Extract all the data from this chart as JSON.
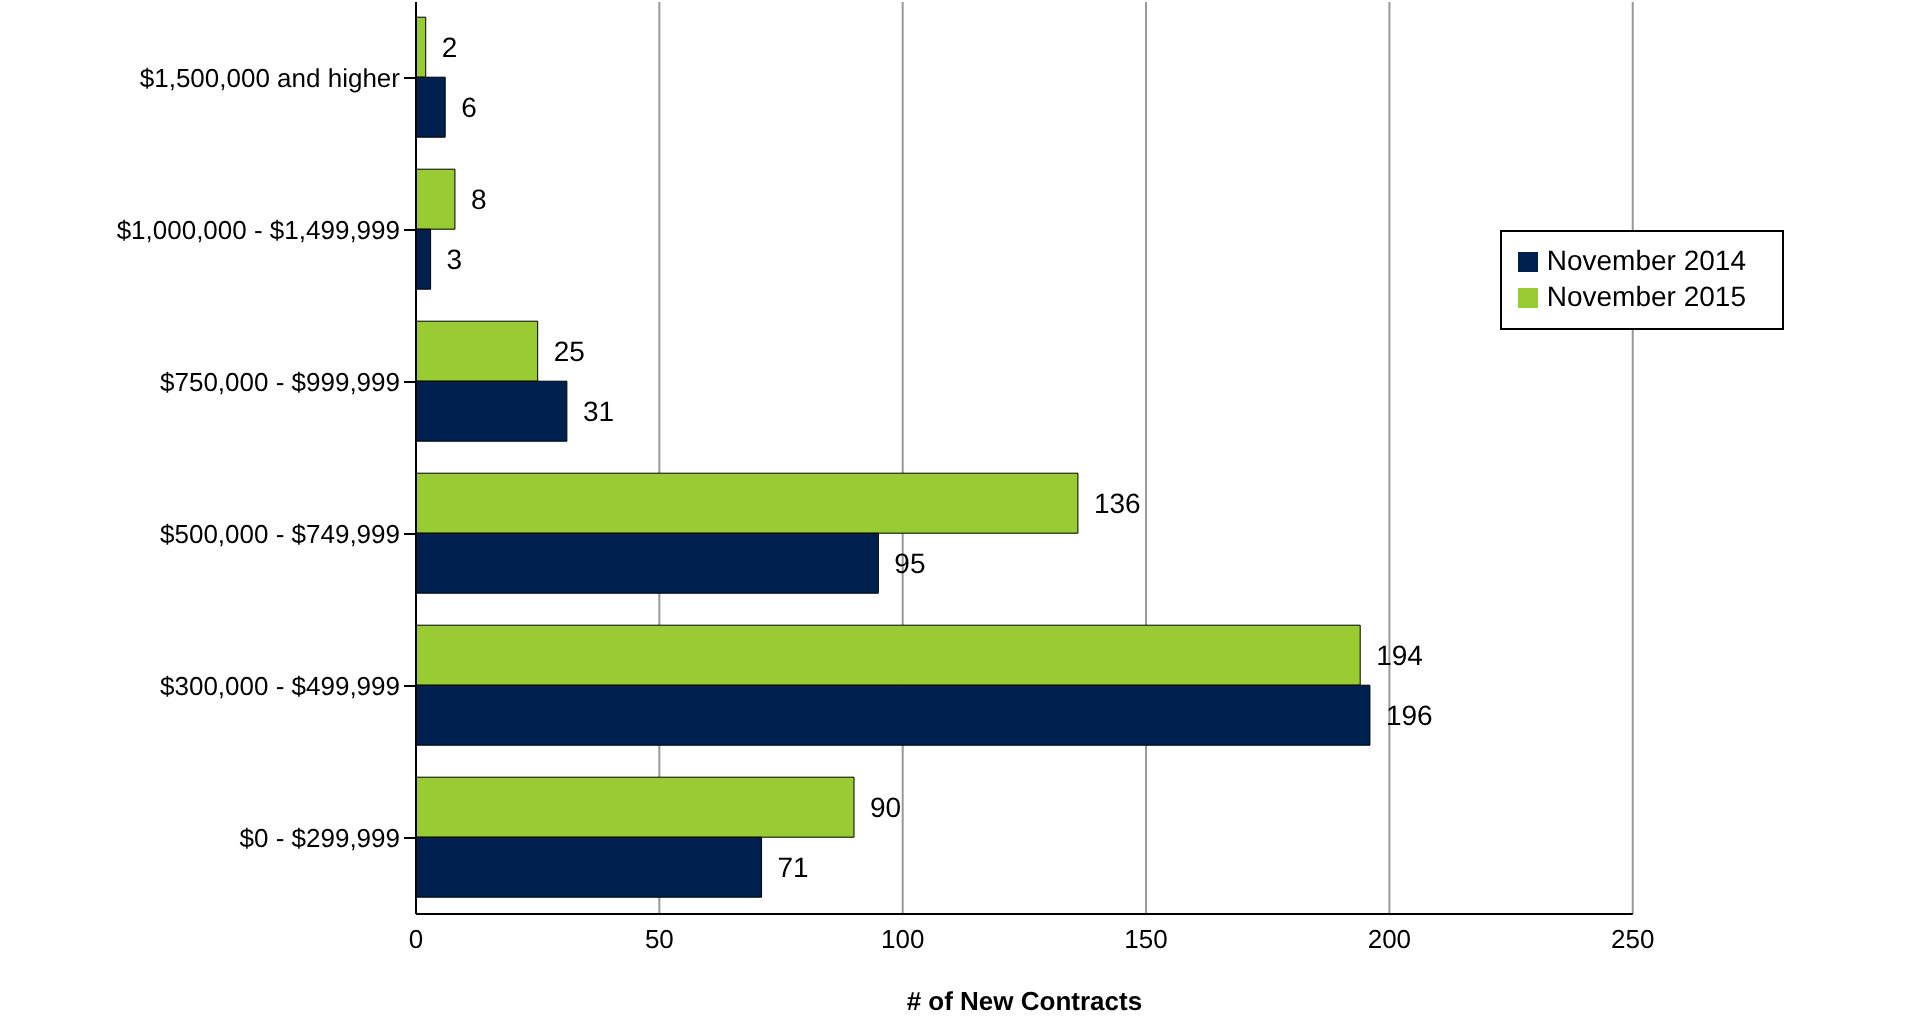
{
  "chart_data": {
    "type": "bar",
    "orientation": "horizontal",
    "xlabel": "# of New Contracts",
    "categories": [
      "$1,500,000 and higher",
      "$1,000,000 - $1,499,999",
      "$750,000 - $999,999",
      "$500,000 - $749,999",
      "$300,000 - $499,999",
      "$0 - $299,999"
    ],
    "series": [
      {
        "name": "November 2015",
        "color": "#99cc33",
        "values": [
          2,
          8,
          25,
          136,
          194,
          90
        ]
      },
      {
        "name": "November 2014",
        "color": "#002050",
        "values": [
          6,
          3,
          31,
          95,
          196,
          71
        ]
      }
    ],
    "xlim": [
      0,
      250
    ],
    "xticks": [
      0,
      50,
      100,
      150,
      200,
      250
    ],
    "grid": "x",
    "legend": "right",
    "data_labels": true
  }
}
